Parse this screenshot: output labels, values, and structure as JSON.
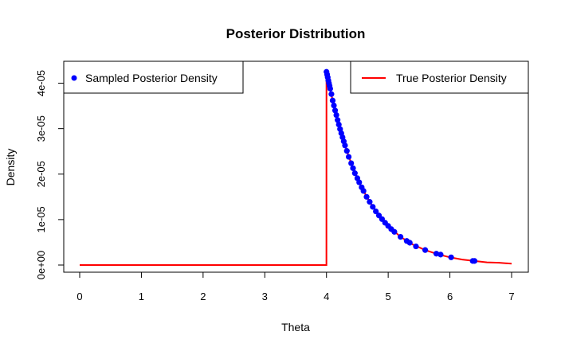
{
  "chart_data": {
    "type": "line",
    "title": "Posterior Distribution",
    "xlabel": "Theta",
    "ylabel": "Density",
    "xlim": [
      0,
      7
    ],
    "ylim": [
      0,
      4.3e-05
    ],
    "x_ticks": [
      0,
      1,
      2,
      3,
      4,
      5,
      6,
      7
    ],
    "x_tick_labels": [
      "0",
      "1",
      "2",
      "3",
      "4",
      "5",
      "6",
      "7"
    ],
    "y_ticks": [
      0,
      1e-05,
      2e-05,
      3e-05,
      4e-05
    ],
    "y_tick_labels": [
      "0e+00",
      "1e-05",
      "2e-05",
      "3e-05",
      "4e-05"
    ],
    "grid": false,
    "legend": [
      {
        "label": "Sampled Posterior Density",
        "placement": "top-left",
        "symbol": "point",
        "color": "#0000ff"
      },
      {
        "label": "True Posterior Density",
        "placement": "top-right",
        "symbol": "line",
        "color": "#ff0000"
      }
    ],
    "series": [
      {
        "kind": "line",
        "color": "#ff0000",
        "x": [
          0,
          3.999,
          4.0,
          4.1,
          4.2,
          4.3,
          4.4,
          4.5,
          4.6,
          4.7,
          4.8,
          4.9,
          5.0,
          5.2,
          5.4,
          5.6,
          5.8,
          6.0,
          6.2,
          6.4,
          6.6,
          6.8,
          7.0
        ],
        "y": [
          0,
          0,
          4.25e-05,
          3.62e-05,
          3.09e-05,
          2.63e-05,
          2.24e-05,
          1.91e-05,
          1.63e-05,
          1.39e-05,
          1.18e-05,
          1.01e-05,
          8.6e-06,
          6.2e-06,
          4.5e-06,
          3.3e-06,
          2.4e-06,
          1.7e-06,
          1.2e-06,
          9e-07,
          6e-07,
          5e-07,
          3e-07
        ]
      },
      {
        "kind": "scatter",
        "color": "#0000ff",
        "x": [
          4.0,
          4.01,
          4.02,
          4.03,
          4.04,
          4.05,
          4.06,
          4.08,
          4.1,
          4.12,
          4.14,
          4.16,
          4.18,
          4.2,
          4.22,
          4.24,
          4.26,
          4.28,
          4.3,
          4.33,
          4.36,
          4.4,
          4.43,
          4.46,
          4.5,
          4.53,
          4.57,
          4.6,
          4.65,
          4.7,
          4.75,
          4.8,
          4.85,
          4.9,
          4.95,
          5.0,
          5.05,
          5.1,
          5.2,
          5.3,
          5.35,
          5.45,
          5.6,
          5.78,
          5.85,
          6.02,
          6.37,
          6.4
        ],
        "y": [
          4.25e-05,
          4.19e-05,
          4.13e-05,
          4.06e-05,
          4e-05,
          3.94e-05,
          3.88e-05,
          3.76e-05,
          3.62e-05,
          3.51e-05,
          3.4e-05,
          3.3e-05,
          3.19e-05,
          3.09e-05,
          2.99e-05,
          2.9e-05,
          2.81e-05,
          2.72e-05,
          2.63e-05,
          2.51e-05,
          2.38e-05,
          2.24e-05,
          2.13e-05,
          2.02e-05,
          1.91e-05,
          1.82e-05,
          1.71e-05,
          1.63e-05,
          1.5e-05,
          1.39e-05,
          1.28e-05,
          1.18e-05,
          1.09e-05,
          1.01e-05,
          9.3e-06,
          8.6e-06,
          7.9e-06,
          7.3e-06,
          6.2e-06,
          5.3e-06,
          4.9e-06,
          4.1e-06,
          3.3e-06,
          2.5e-06,
          2.3e-06,
          1.7e-06,
          9e-07,
          9e-07
        ]
      }
    ]
  }
}
